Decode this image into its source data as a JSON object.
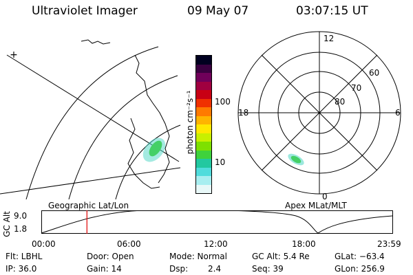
{
  "header": {
    "title": "Ultraviolet Imager",
    "date": "09 May 07",
    "time": "03:07:15 UT"
  },
  "colorbar": {
    "unit_label": "photon cm⁻²s⁻¹",
    "ticks": [
      "100",
      "10"
    ],
    "colors": [
      "#000020",
      "#3a0040",
      "#70005a",
      "#a00040",
      "#c80014",
      "#f03000",
      "#ff7a00",
      "#ffb400",
      "#ffe800",
      "#c8f000",
      "#7ee000",
      "#3fd23c",
      "#22c8a0",
      "#50dcdc",
      "#a8eef0",
      "#e8f8f8"
    ]
  },
  "polar_plot": {
    "mlt_labels": [
      "12",
      "18",
      "6",
      "0"
    ],
    "lat_labels": [
      "60",
      "70",
      "80"
    ]
  },
  "section_labels": {
    "left": "Geographic Lat/Lon",
    "right": "Apex MLat/MLT"
  },
  "orbit_strip": {
    "ylabel": "GC Alt",
    "yticks": [
      "9.0",
      "1.8"
    ],
    "xticks": [
      "00:00",
      "06:00",
      "12:00",
      "18:00",
      "23:59"
    ],
    "marker_time_hours": 3.12
  },
  "info": {
    "row1": {
      "flt": "Flt: LBHL",
      "door": "Door: Open",
      "mode": "Mode: Normal",
      "gc_alt": "GC Alt: 5.4 Re",
      "glat": "GLat: −63.4"
    },
    "row2": {
      "ip": "IP: 36.0",
      "gain": "Gain: 14",
      "dsp_label": "Dsp:",
      "dsp_value": "2.4",
      "seq": "Seq: 39",
      "glon": "GLon: 256.9"
    }
  },
  "colors": {
    "line": "#000000",
    "marker": "#e00000",
    "aurora_green": "#44d066",
    "aurora_cyan": "#5ad8c8"
  }
}
